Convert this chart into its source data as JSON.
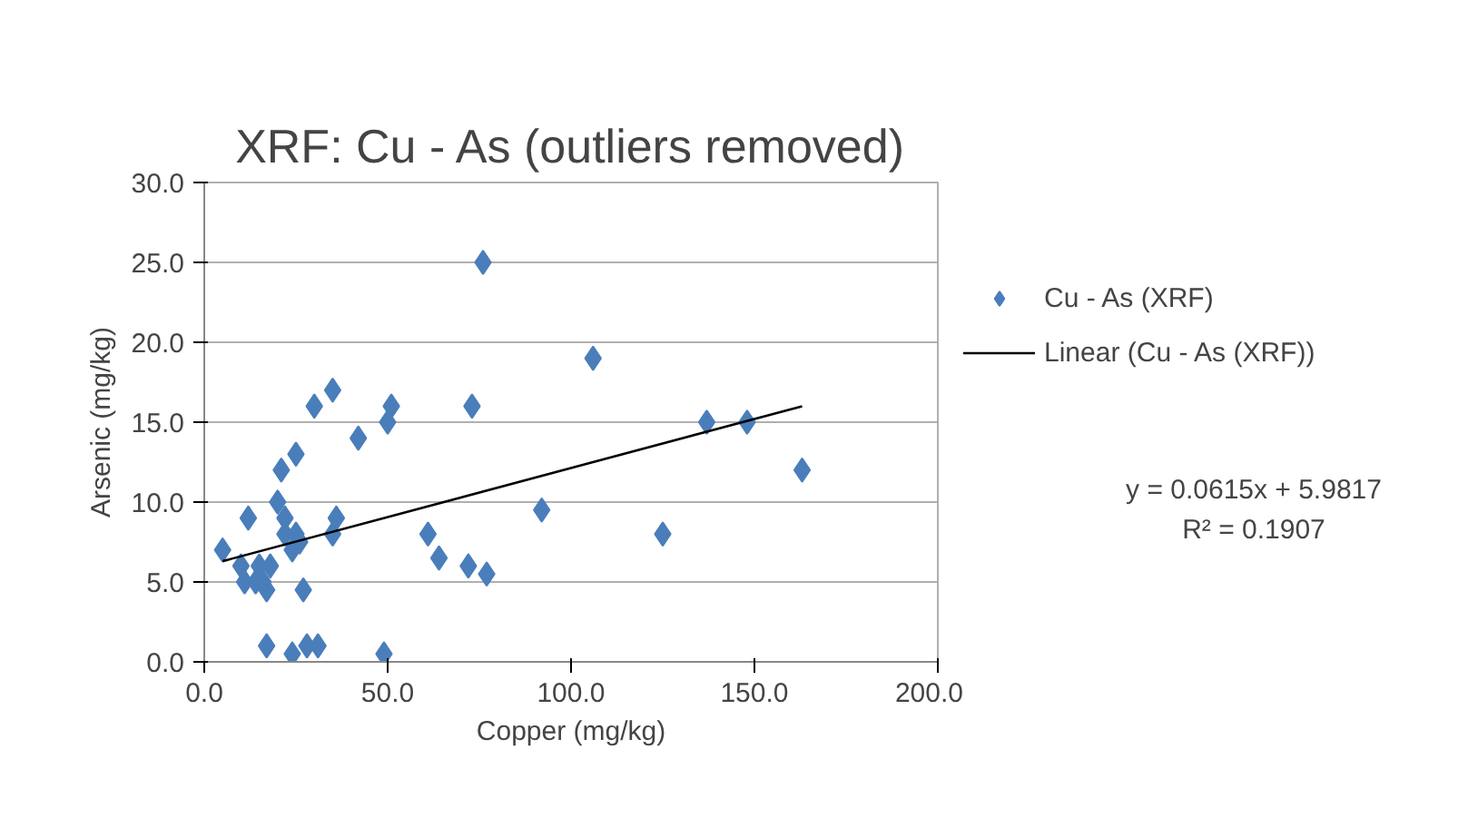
{
  "chart_data": {
    "type": "scatter",
    "title": "XRF: Cu - As (outliers removed)",
    "xlabel": "Copper (mg/kg)",
    "ylabel": "Arsenic (mg/kg)",
    "xlim": [
      0,
      200
    ],
    "ylim": [
      0,
      30
    ],
    "xticks": [
      {
        "value": 0,
        "label": "0.0"
      },
      {
        "value": 50,
        "label": "50.0"
      },
      {
        "value": 100,
        "label": "100.0"
      },
      {
        "value": 150,
        "label": "150.0"
      },
      {
        "value": 200,
        "label": "200.0"
      }
    ],
    "yticks": [
      {
        "value": 0,
        "label": "0.0"
      },
      {
        "value": 5,
        "label": "5.0"
      },
      {
        "value": 10,
        "label": "10.0"
      },
      {
        "value": 15,
        "label": "15.0"
      },
      {
        "value": 20,
        "label": "20.0"
      },
      {
        "value": 25,
        "label": "25.0"
      },
      {
        "value": 30,
        "label": "30.0"
      }
    ],
    "grid": "y",
    "legend": "right",
    "annotations": [
      "y = 0.0615x + 5.9817",
      "R² = 0.1907"
    ],
    "series": [
      {
        "name": "Cu - As (XRF)",
        "marker": "diamond",
        "color": "#4a7ebb",
        "x": [
          5,
          12,
          11,
          14,
          15,
          16,
          17,
          18,
          10,
          20,
          21,
          22,
          22,
          24,
          25,
          26,
          25,
          27,
          30,
          35,
          36,
          35,
          17,
          24,
          28,
          31,
          42,
          50,
          51,
          49,
          61,
          64,
          73,
          72,
          76,
          77,
          92,
          106,
          125,
          137,
          148,
          163
        ],
        "values": [
          7,
          9,
          5,
          5,
          6,
          5,
          4.5,
          6,
          6,
          10,
          12,
          9,
          8,
          7,
          8,
          7.5,
          13,
          4.5,
          16,
          17,
          9,
          8,
          1,
          0.5,
          1,
          1,
          14,
          15,
          16,
          0.5,
          8,
          6.5,
          16,
          6,
          25,
          5.5,
          9.5,
          19,
          8,
          15,
          15,
          12
        ]
      },
      {
        "name": "Linear (Cu - As (XRF))",
        "type": "line",
        "color": "#000000",
        "line_style": "solid",
        "x": [
          5,
          163
        ],
        "values": [
          6.3,
          16.0
        ]
      }
    ]
  }
}
